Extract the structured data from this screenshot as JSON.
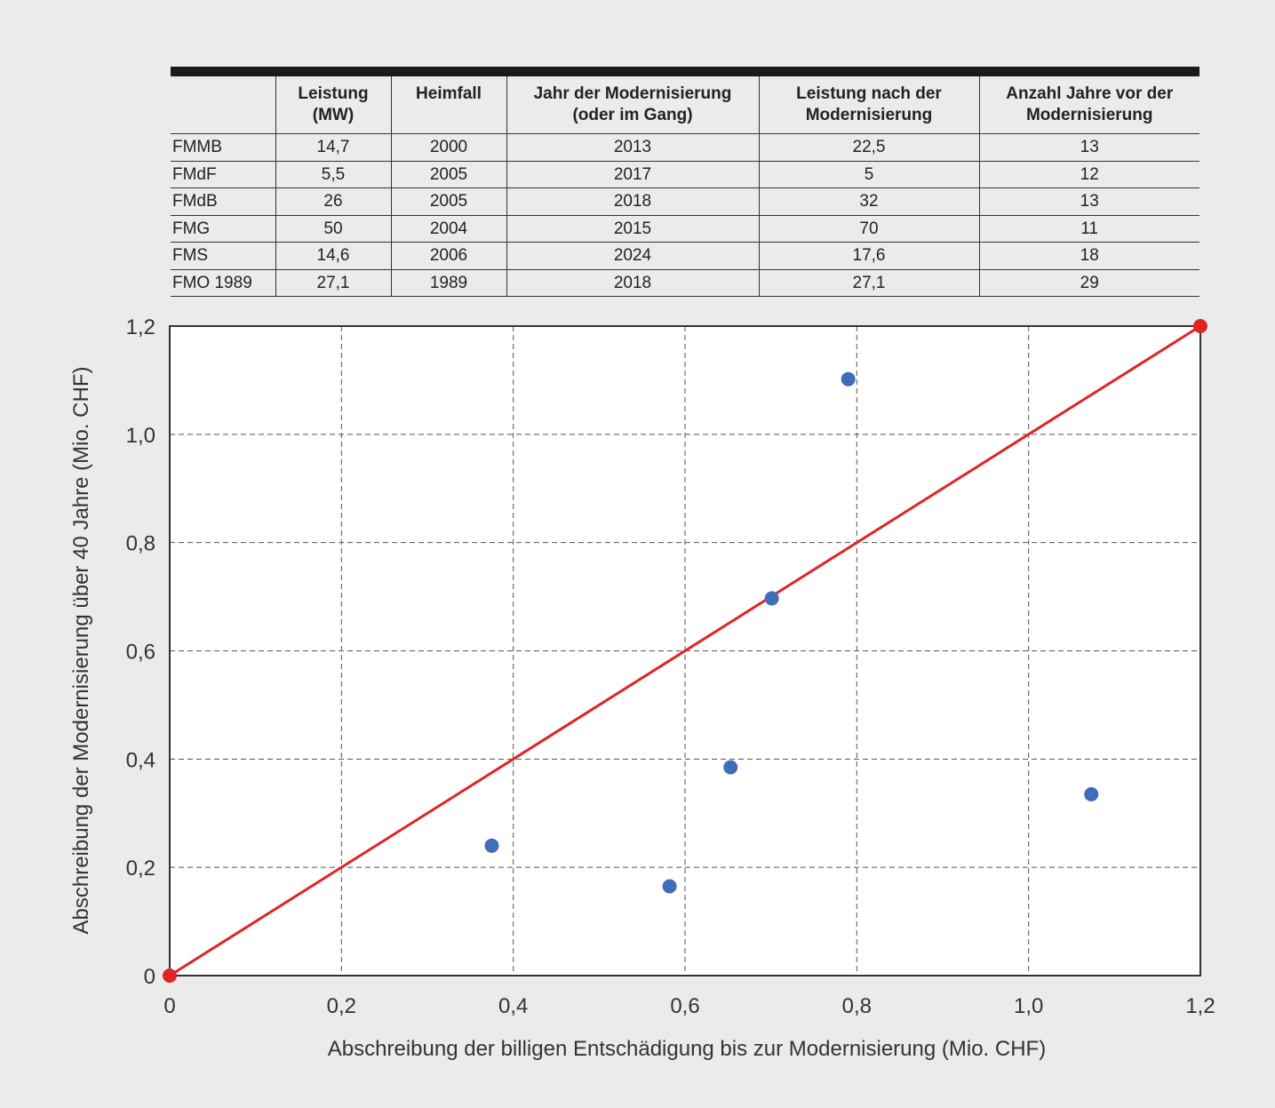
{
  "table": {
    "headers": [
      "",
      "Leistung\n(MW)",
      "Heimfall",
      "Jahr der Modernisierung\n(oder im Gang)",
      "Leistung nach der\nModernisierung",
      "Anzahl Jahre vor der\nModernisierung"
    ],
    "rows": [
      [
        "FMMB",
        "14,7",
        "2000",
        "2013",
        "22,5",
        "13"
      ],
      [
        "FMdF",
        "5,5",
        "2005",
        "2017",
        "5",
        "12"
      ],
      [
        "FMdB",
        "26",
        "2005",
        "2018",
        "32",
        "13"
      ],
      [
        "FMG",
        "50",
        "2004",
        "2015",
        "70",
        "11"
      ],
      [
        "FMS",
        "14,6",
        "2006",
        "2024",
        "17,6",
        "18"
      ],
      [
        "FMO 1989",
        "27,1",
        "1989",
        "2018",
        "27,1",
        "29"
      ]
    ]
  },
  "chart_data": {
    "type": "scatter",
    "xlabel": "Abschreibung der billigen Entschädigung bis zur Modernisierung (Mio. CHF)",
    "ylabel": "Abschreibung der Modernisierung über 40 Jahre (Mio. CHF)",
    "xlim": [
      0,
      1.2
    ],
    "ylim": [
      0,
      1.2
    ],
    "xticks": [
      0,
      0.2,
      0.4,
      0.6,
      0.8,
      1.0,
      1.2
    ],
    "yticks": [
      0,
      0.2,
      0.4,
      0.6,
      0.8,
      1.0,
      1.2
    ],
    "xtick_labels": [
      "0",
      "0,2",
      "0,4",
      "0,6",
      "0,8",
      "1,0",
      "1,2"
    ],
    "ytick_labels": [
      "0",
      "0,2",
      "0,4",
      "0,6",
      "0,8",
      "1,0",
      "1,2"
    ],
    "grid": true,
    "points": [
      {
        "x": 0.375,
        "y": 0.24
      },
      {
        "x": 0.582,
        "y": 0.165
      },
      {
        "x": 0.653,
        "y": 0.385
      },
      {
        "x": 0.701,
        "y": 0.697
      },
      {
        "x": 0.79,
        "y": 1.102
      },
      {
        "x": 1.073,
        "y": 0.335
      }
    ],
    "reference_line": {
      "x": [
        0,
        1.2
      ],
      "y": [
        0,
        1.2
      ]
    },
    "colors": {
      "points": "#3f6db8",
      "line": "#e02424",
      "grid": "#555555"
    }
  }
}
